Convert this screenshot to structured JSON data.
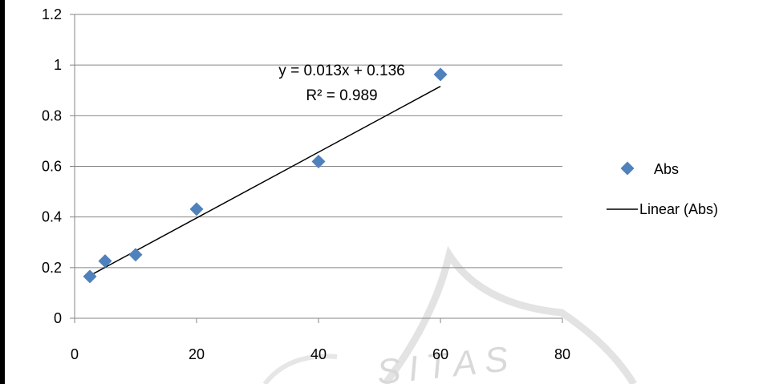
{
  "chart_data": {
    "type": "scatter",
    "title": "",
    "xlabel": "",
    "ylabel": "",
    "xlim": [
      0,
      80
    ],
    "ylim": [
      0,
      1.2
    ],
    "x_ticks": [
      "0",
      "20",
      "40",
      "60",
      "80"
    ],
    "y_ticks": [
      "0",
      "0.2",
      "0.4",
      "0.6",
      "0.8",
      "1",
      "1.2"
    ],
    "grid": "horizontal",
    "legend_position": "right",
    "series": [
      {
        "name": "Abs",
        "color": "#4f81bd",
        "marker": "diamond",
        "x": [
          2.5,
          5,
          10,
          20,
          40,
          60
        ],
        "y": [
          0.165,
          0.226,
          0.251,
          0.431,
          0.619,
          0.963
        ]
      }
    ],
    "trendline": {
      "name": "Linear (Abs)",
      "slope": 0.013,
      "intercept": 0.136,
      "x_range": [
        2.5,
        60
      ],
      "equation": "y = 0.013x + 0.136",
      "r_squared": "R² = 0.989",
      "color": "#000000"
    },
    "watermark": "SITAS"
  }
}
